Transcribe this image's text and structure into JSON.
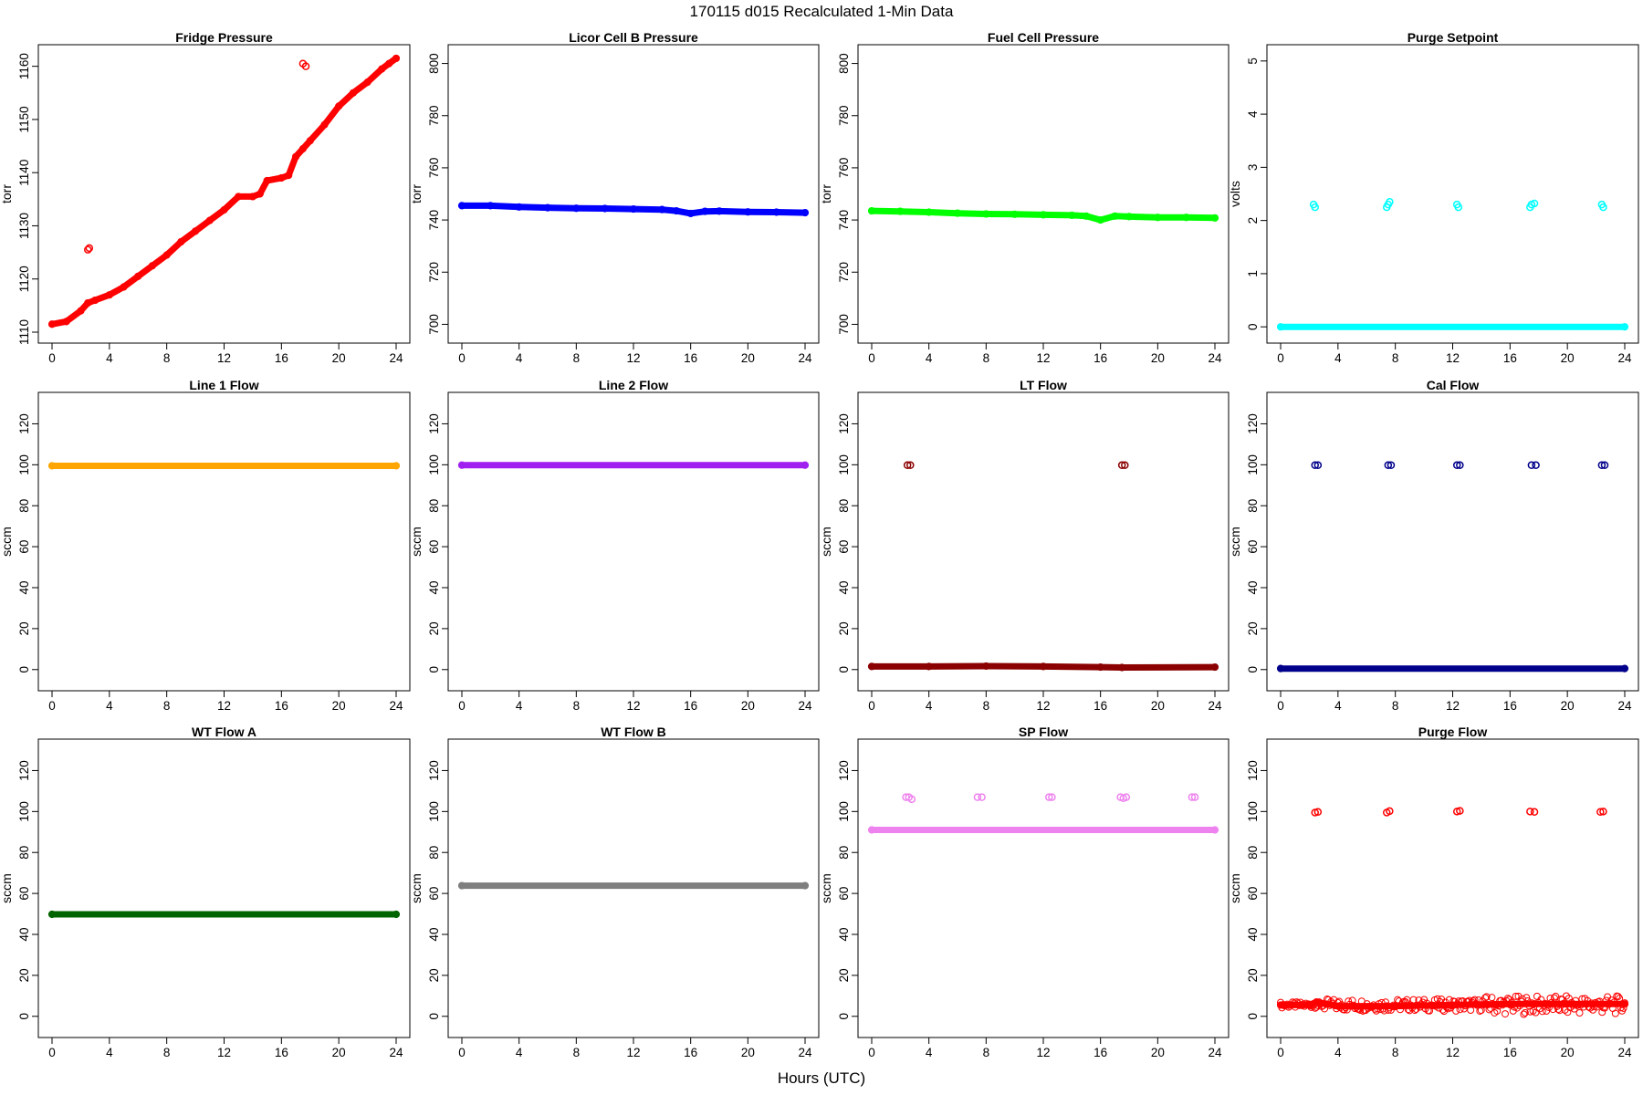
{
  "figure": {
    "title": "170115   d015   Recalculated 1-Min Data",
    "xlabel": "Hours (UTC)"
  },
  "chart_data": [
    {
      "type": "scatter",
      "title": "Fridge Pressure",
      "xlabel": "",
      "ylabel": "torr",
      "xlim": [
        0,
        24
      ],
      "ylim": [
        1110,
        1162
      ],
      "xticks": [
        0,
        4,
        8,
        12,
        16,
        20,
        24
      ],
      "yticks": [
        1110,
        1120,
        1130,
        1140,
        1150,
        1160
      ],
      "color": "#ff0000",
      "series": [
        {
          "points": [
            [
              0,
              1111.5
            ],
            [
              1,
              1112
            ],
            [
              2,
              1114
            ],
            [
              2.5,
              1115.5
            ],
            [
              3,
              1116
            ],
            [
              4,
              1117
            ],
            [
              5,
              1118.5
            ],
            [
              6,
              1120.5
            ],
            [
              7,
              1122.5
            ],
            [
              8,
              1124.5
            ],
            [
              9,
              1127
            ],
            [
              10,
              1129
            ],
            [
              11,
              1131
            ],
            [
              12,
              1133
            ],
            [
              13,
              1135.5
            ],
            [
              14,
              1135.5
            ],
            [
              14.5,
              1136
            ],
            [
              15,
              1138.5
            ],
            [
              16,
              1139
            ],
            [
              16.5,
              1139.5
            ],
            [
              17,
              1143
            ],
            [
              17.5,
              1144.5
            ],
            [
              18,
              1146
            ],
            [
              19,
              1149
            ],
            [
              20,
              1152.5
            ],
            [
              21,
              1155
            ],
            [
              22,
              1157
            ],
            [
              23,
              1159.5
            ],
            [
              23.5,
              1160.5
            ],
            [
              24,
              1161.5
            ]
          ],
          "outliers": [
            [
              2.5,
              1125.5
            ],
            [
              2.6,
              1125.8
            ],
            [
              17.5,
              1160.5
            ],
            [
              17.7,
              1160
            ]
          ]
        }
      ]
    },
    {
      "type": "scatter",
      "title": "Licor Cell B Pressure",
      "xlabel": "",
      "ylabel": "torr",
      "xlim": [
        0,
        24
      ],
      "ylim": [
        697,
        803
      ],
      "xticks": [
        0,
        4,
        8,
        12,
        16,
        20,
        24
      ],
      "yticks": [
        700,
        720,
        740,
        760,
        780,
        800
      ],
      "color": "#0000ff",
      "series": [
        {
          "points": [
            [
              0,
              745.5
            ],
            [
              2,
              745.5
            ],
            [
              4,
              745
            ],
            [
              6,
              744.7
            ],
            [
              8,
              744.5
            ],
            [
              10,
              744.4
            ],
            [
              12,
              744.2
            ],
            [
              14,
              744
            ],
            [
              15,
              743.5
            ],
            [
              16,
              742.5
            ],
            [
              17,
              743.3
            ],
            [
              18,
              743.4
            ],
            [
              20,
              743.1
            ],
            [
              22,
              743
            ],
            [
              24,
              742.8
            ]
          ]
        }
      ]
    },
    {
      "type": "scatter",
      "title": "Fuel Cell Pressure",
      "xlabel": "",
      "ylabel": "torr",
      "xlim": [
        0,
        24
      ],
      "ylim": [
        697,
        803
      ],
      "xticks": [
        0,
        4,
        8,
        12,
        16,
        20,
        24
      ],
      "yticks": [
        700,
        720,
        740,
        760,
        780,
        800
      ],
      "color": "#00ff00",
      "series": [
        {
          "points": [
            [
              0,
              743.5
            ],
            [
              2,
              743.3
            ],
            [
              4,
              743
            ],
            [
              6,
              742.6
            ],
            [
              8,
              742.3
            ],
            [
              10,
              742.2
            ],
            [
              12,
              742
            ],
            [
              14,
              741.8
            ],
            [
              15,
              741.5
            ],
            [
              16,
              740
            ],
            [
              17,
              741.5
            ],
            [
              18,
              741.3
            ],
            [
              20,
              741
            ],
            [
              22,
              741
            ],
            [
              24,
              740.8
            ]
          ]
        }
      ]
    },
    {
      "type": "scatter",
      "title": "Purge Setpoint",
      "xlabel": "",
      "ylabel": "volts",
      "xlim": [
        0,
        24
      ],
      "ylim": [
        -0.1,
        5.1
      ],
      "xticks": [
        0,
        4,
        8,
        12,
        16,
        20,
        24
      ],
      "yticks": [
        0,
        1,
        2,
        3,
        4,
        5
      ],
      "color": "#00ffff",
      "series": [
        {
          "points": [
            [
              0,
              0
            ],
            [
              24,
              0
            ]
          ],
          "outliers": [
            [
              2.3,
              2.3
            ],
            [
              2.4,
              2.25
            ],
            [
              7.5,
              2.3
            ],
            [
              7.6,
              2.35
            ],
            [
              7.4,
              2.25
            ],
            [
              12.3,
              2.3
            ],
            [
              12.4,
              2.25
            ],
            [
              17.5,
              2.3
            ],
            [
              17.7,
              2.32
            ],
            [
              17.4,
              2.25
            ],
            [
              22.4,
              2.3
            ],
            [
              22.5,
              2.25
            ]
          ]
        }
      ]
    },
    {
      "type": "scatter",
      "title": "Line 1 Flow",
      "xlabel": "",
      "ylabel": "sccm",
      "xlim": [
        0,
        24
      ],
      "ylim": [
        -5,
        130
      ],
      "xticks": [
        0,
        4,
        8,
        12,
        16,
        20,
        24
      ],
      "yticks": [
        0,
        20,
        40,
        60,
        80,
        100,
        120
      ],
      "color": "#ffa500",
      "series": [
        {
          "points": [
            [
              0,
              99.5
            ],
            [
              24,
              99.5
            ]
          ]
        }
      ]
    },
    {
      "type": "scatter",
      "title": "Line 2 Flow",
      "xlabel": "",
      "ylabel": "sccm",
      "xlim": [
        0,
        24
      ],
      "ylim": [
        -5,
        130
      ],
      "xticks": [
        0,
        4,
        8,
        12,
        16,
        20,
        24
      ],
      "yticks": [
        0,
        20,
        40,
        60,
        80,
        100,
        120
      ],
      "color": "#a020f0",
      "series": [
        {
          "points": [
            [
              0,
              99.8
            ],
            [
              24,
              99.8
            ]
          ]
        }
      ]
    },
    {
      "type": "scatter",
      "title": "LT Flow",
      "xlabel": "",
      "ylabel": "sccm",
      "xlim": [
        0,
        24
      ],
      "ylim": [
        -5,
        130
      ],
      "xticks": [
        0,
        4,
        8,
        12,
        16,
        20,
        24
      ],
      "yticks": [
        0,
        20,
        40,
        60,
        80,
        100,
        120
      ],
      "color": "#8b0000",
      "series": [
        {
          "points": [
            [
              0,
              1.5
            ],
            [
              4,
              1.5
            ],
            [
              8,
              1.7
            ],
            [
              12,
              1.5
            ],
            [
              16,
              1.2
            ],
            [
              17.5,
              1
            ],
            [
              24,
              1.2
            ]
          ],
          "outliers": [
            [
              2.5,
              99.8
            ],
            [
              2.7,
              99.8
            ],
            [
              17.5,
              99.8
            ],
            [
              17.7,
              99.8
            ]
          ]
        }
      ]
    },
    {
      "type": "scatter",
      "title": "Cal Flow",
      "xlabel": "",
      "ylabel": "sccm",
      "xlim": [
        0,
        24
      ],
      "ylim": [
        -5,
        130
      ],
      "xticks": [
        0,
        4,
        8,
        12,
        16,
        20,
        24
      ],
      "yticks": [
        0,
        20,
        40,
        60,
        80,
        100,
        120
      ],
      "color": "#00008b",
      "series": [
        {
          "points": [
            [
              0,
              0.5
            ],
            [
              24,
              0.5
            ]
          ],
          "outliers": [
            [
              2.4,
              99.8
            ],
            [
              2.6,
              99.8
            ],
            [
              7.5,
              99.8
            ],
            [
              7.7,
              99.8
            ],
            [
              12.3,
              99.8
            ],
            [
              12.5,
              99.8
            ],
            [
              17.5,
              99.8
            ],
            [
              17.8,
              99.8
            ],
            [
              22.4,
              99.8
            ],
            [
              22.6,
              99.8
            ]
          ]
        }
      ]
    },
    {
      "type": "scatter",
      "title": "WT Flow A",
      "xlabel": "",
      "ylabel": "sccm",
      "xlim": [
        0,
        24
      ],
      "ylim": [
        -5,
        130
      ],
      "xticks": [
        0,
        4,
        8,
        12,
        16,
        20,
        24
      ],
      "yticks": [
        0,
        20,
        40,
        60,
        80,
        100,
        120
      ],
      "color": "#006400",
      "series": [
        {
          "points": [
            [
              0,
              49.8
            ],
            [
              24,
              49.8
            ]
          ]
        }
      ]
    },
    {
      "type": "scatter",
      "title": "WT Flow B",
      "xlabel": "",
      "ylabel": "sccm",
      "xlim": [
        0,
        24
      ],
      "ylim": [
        -5,
        130
      ],
      "xticks": [
        0,
        4,
        8,
        12,
        16,
        20,
        24
      ],
      "yticks": [
        0,
        20,
        40,
        60,
        80,
        100,
        120
      ],
      "color": "#7f7f7f",
      "series": [
        {
          "points": [
            [
              0,
              63.8
            ],
            [
              24,
              63.8
            ]
          ]
        }
      ]
    },
    {
      "type": "scatter",
      "title": "SP Flow",
      "xlabel": "",
      "ylabel": "sccm",
      "xlim": [
        0,
        24
      ],
      "ylim": [
        -5,
        130
      ],
      "xticks": [
        0,
        4,
        8,
        12,
        16,
        20,
        24
      ],
      "yticks": [
        0,
        20,
        40,
        60,
        80,
        100,
        120
      ],
      "color": "#ee82ee",
      "series": [
        {
          "points": [
            [
              0,
              91
            ],
            [
              24,
              91
            ]
          ],
          "outliers": [
            [
              2.4,
              107
            ],
            [
              2.6,
              107
            ],
            [
              2.8,
              106
            ],
            [
              7.4,
              107
            ],
            [
              7.7,
              107
            ],
            [
              12.4,
              107
            ],
            [
              12.6,
              107
            ],
            [
              17.4,
              107
            ],
            [
              17.6,
              106.5
            ],
            [
              17.8,
              107
            ],
            [
              22.4,
              107
            ],
            [
              22.6,
              107
            ]
          ]
        }
      ]
    },
    {
      "type": "scatter",
      "title": "Purge Flow",
      "xlabel": "",
      "ylabel": "sccm",
      "xlim": [
        0,
        24
      ],
      "ylim": [
        -5,
        130
      ],
      "xticks": [
        0,
        4,
        8,
        12,
        16,
        20,
        24
      ],
      "yticks": [
        0,
        20,
        40,
        60,
        80,
        100,
        120
      ],
      "color": "#ff0000",
      "series": [
        {
          "points": [
            [
              0,
              5.5
            ],
            [
              2,
              5.5
            ],
            [
              2.5,
              7
            ],
            [
              4,
              5
            ],
            [
              8,
              5
            ],
            [
              12,
              5.5
            ],
            [
              16,
              6
            ],
            [
              20,
              6
            ],
            [
              24,
              6
            ]
          ],
          "outliers": [
            [
              2.4,
              99.5
            ],
            [
              2.6,
              99.8
            ],
            [
              7.4,
              99.5
            ],
            [
              7.6,
              100.2
            ],
            [
              12.3,
              100
            ],
            [
              12.5,
              100.3
            ],
            [
              17.4,
              100
            ],
            [
              17.7,
              99.8
            ],
            [
              22.3,
              99.8
            ],
            [
              22.5,
              100
            ]
          ]
        }
      ]
    }
  ]
}
